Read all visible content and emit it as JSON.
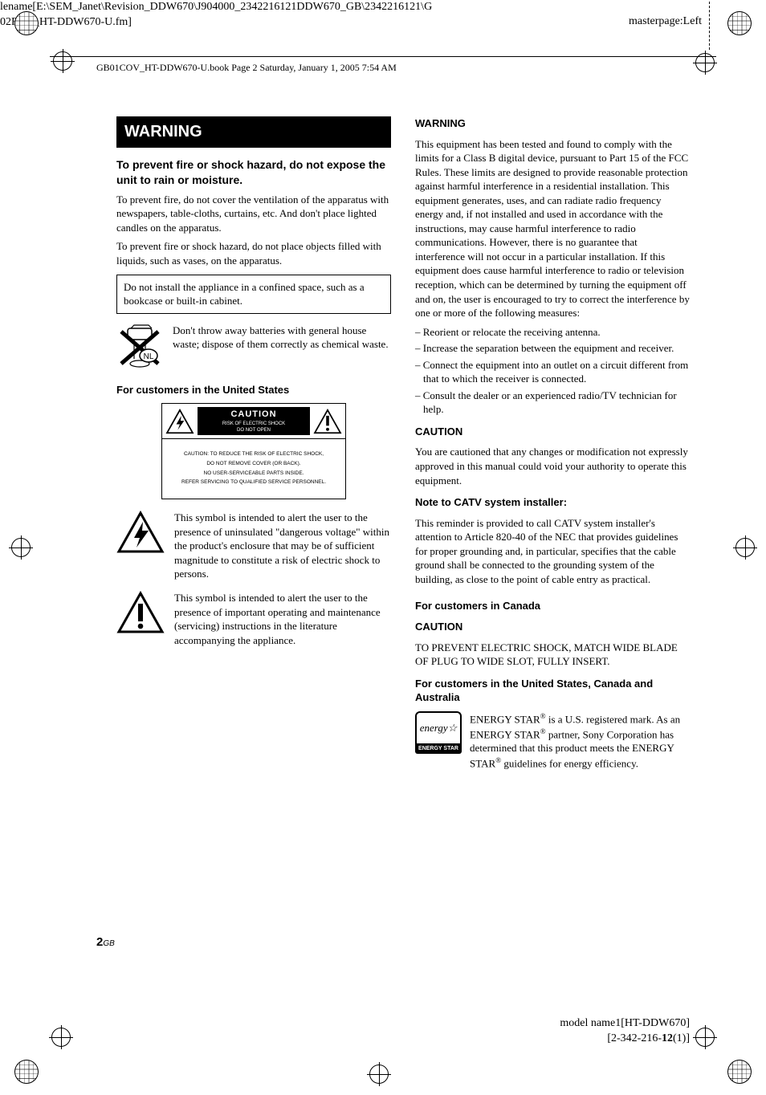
{
  "meta": {
    "filename": "lename[E:\\SEM_Janet\\Revision_DDW670\\J904000_2342216121DDW670_GB\\2342216121\\G 02REG_HT-DDW670-U.fm]",
    "masterpage": "masterpage:Left",
    "book_header": "GB01COV_HT-DDW670-U.book  Page 2  Saturday, January 1, 2005  7:54 AM"
  },
  "left": {
    "banner": "WARNING",
    "subhead": "To prevent fire or shock hazard, do not expose the unit to rain or moisture.",
    "para1": "To prevent fire, do not cover the ventilation of the apparatus with newspapers, table-cloths, curtains, etc. And don't place lighted candles on the apparatus.",
    "para2": "To prevent fire or shock hazard, do not place objects filled with liquids, such as vases, on the apparatus.",
    "notice": "Do not install the appliance in a confined space, such as a bookcase or built-in cabinet.",
    "nl_label": "NL",
    "battery": "Don't throw away batteries with general house waste; dispose of them correctly as chemical waste.",
    "us_heading": "For customers in the United States",
    "caution_label": "CAUTION",
    "caution_sub1": "RISK OF ELECTRIC SHOCK",
    "caution_sub2": "DO NOT OPEN",
    "caution_block_1": "CAUTION: TO REDUCE THE RISK OF ELECTRIC SHOCK,",
    "caution_block_2": "DO NOT REMOVE COVER (OR BACK).",
    "caution_block_3": "NO USER-SERVICEABLE PARTS INSIDE.",
    "caution_block_4": "REFER SERVICING TO QUALIFIED SERVICE PERSONNEL.",
    "symbol_bolt": "This symbol is intended to alert the user to the presence of uninsulated \"dangerous voltage\" within the product's enclosure that may be of sufficient magnitude to constitute a risk of electric shock to persons.",
    "symbol_excl": "This symbol is intended to alert the user to the presence of important operating and maintenance (servicing) instructions in the literature accompanying the appliance."
  },
  "right": {
    "warning_head": "WARNING",
    "warning_body": "This equipment has been tested and found to comply with the limits for a Class B digital device, pursuant to Part 15 of the FCC Rules. These limits are designed to provide reasonable protection against harmful interference in a residential installation. This equipment generates, uses, and can radiate radio frequency energy and, if not installed and used in accordance with the instructions, may cause harmful interference to radio communications. However, there is no guarantee that interference will not occur in a particular installation. If this equipment does cause harmful interference to radio or television reception, which can be determined by turning the equipment off and on, the user is encouraged to try to correct the interference by one or more of the following measures:",
    "measures": [
      "Reorient or relocate the receiving antenna.",
      "Increase the separation between the equipment and receiver.",
      "Connect the equipment into an outlet on a circuit different from that to which the receiver is connected.",
      "Consult the dealer or an experienced radio/TV technician for help."
    ],
    "caution_head": "CAUTION",
    "caution_body": "You are cautioned that any changes or modification not expressly approved in this manual could void your authority to operate this equipment.",
    "catv_head": "Note to CATV system installer:",
    "catv_body": "This reminder is provided to call CATV system installer's attention to Article 820-40 of the NEC that provides guidelines for proper grounding and, in particular, specifies that the cable ground shall be connected to the grounding system of the building, as close to the point of cable entry as practical.",
    "canada_head": "For customers in Canada",
    "canada_sub": "CAUTION",
    "canada_body": "TO PREVENT ELECTRIC SHOCK, MATCH WIDE BLADE OF PLUG TO WIDE SLOT, FULLY INSERT.",
    "usca_head": "For customers in the United States, Canada and Australia",
    "energystar_label": "ENERGY STAR",
    "energystar_script": "energy",
    "energystar_body_1": "ENERGY STAR",
    "energystar_body_2": " is a U.S. registered mark. As an ENERGY STAR",
    "energystar_body_3": " partner, Sony Corporation has determined that this product meets the ENERGY STAR",
    "energystar_body_4": " guidelines for energy efficiency."
  },
  "footer": {
    "page_num": "2",
    "page_suffix": "GB",
    "model": "model name1[HT-DDW670]",
    "code": "[2-342-216-12(1)]"
  }
}
